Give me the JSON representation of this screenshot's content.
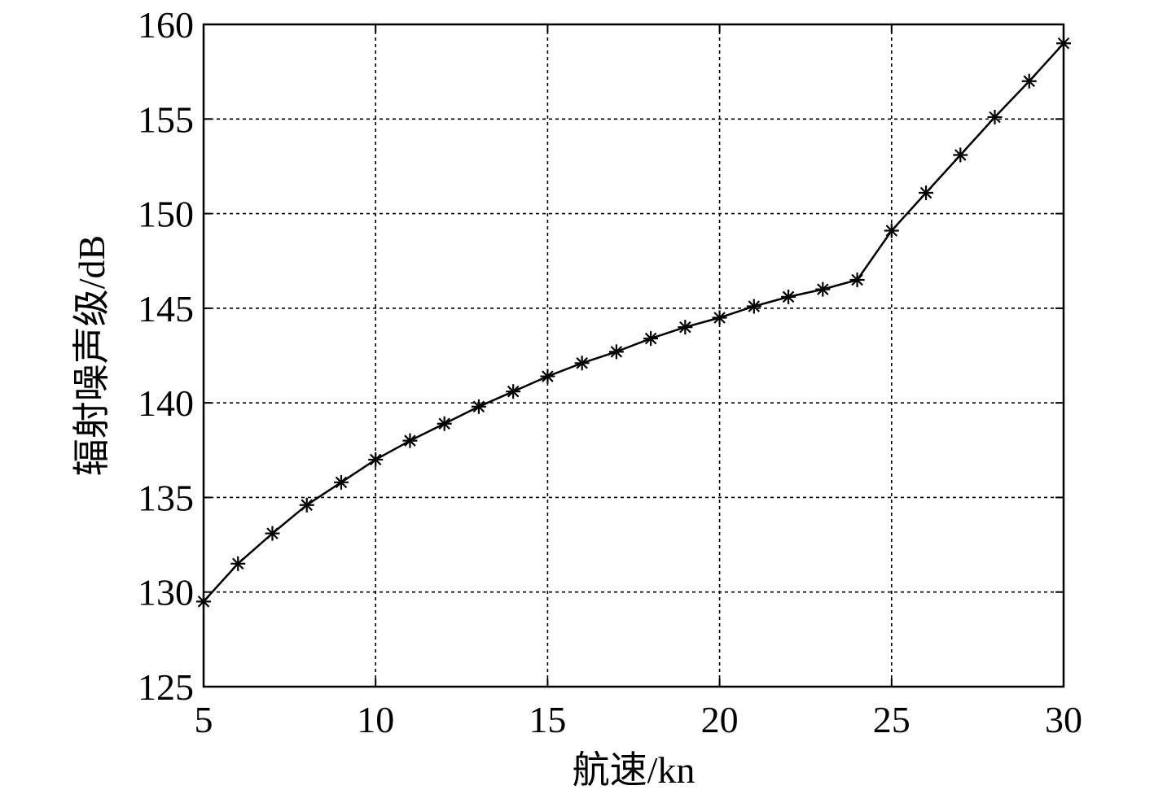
{
  "chart_data": {
    "type": "line",
    "title": "",
    "xlabel": "航速/kn",
    "ylabel": "辐射噪声级/dB",
    "xlim": [
      5,
      30
    ],
    "ylim": [
      125,
      160
    ],
    "xticks": [
      5,
      10,
      15,
      20,
      25,
      30
    ],
    "yticks": [
      125,
      130,
      135,
      140,
      145,
      150,
      155,
      160
    ],
    "grid": true,
    "marker": "asterisk",
    "line_color": "#000000",
    "series": [
      {
        "x": [
          5,
          6,
          7,
          8,
          9,
          10,
          11,
          12,
          13,
          14,
          15,
          16,
          17,
          18,
          19,
          20,
          21,
          22,
          23,
          24,
          25,
          26,
          27,
          28,
          29,
          30
        ],
        "y": [
          129.5,
          131.5,
          133.1,
          134.6,
          135.8,
          137.0,
          138.0,
          138.9,
          139.8,
          140.6,
          141.4,
          142.1,
          142.7,
          143.4,
          144.0,
          144.5,
          145.1,
          145.6,
          146.0,
          146.5,
          149.1,
          151.1,
          153.1,
          155.1,
          157.0,
          159.0
        ]
      }
    ]
  }
}
